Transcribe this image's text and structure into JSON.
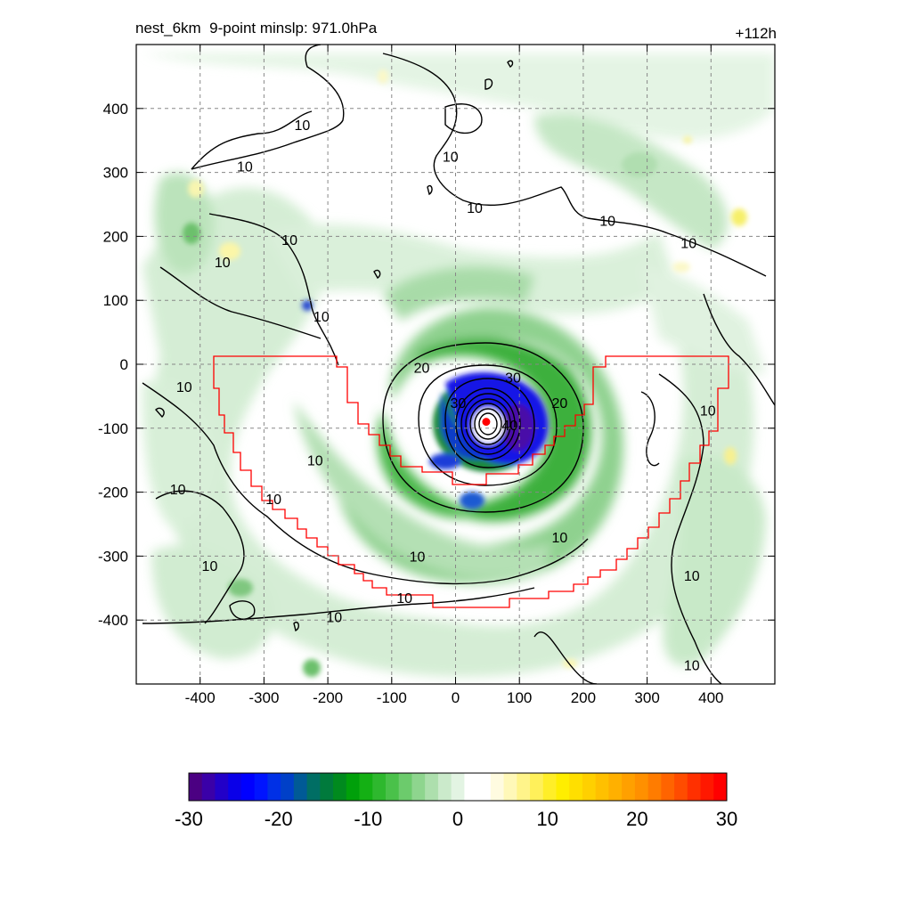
{
  "chart_data": {
    "type": "heatmap",
    "title_left": "nest_6km  9-point minslp: 971.0hPa",
    "title_right": "+112h",
    "xlim": [
      -500,
      500
    ],
    "ylim": [
      -500,
      500
    ],
    "xticks": [
      -400,
      -300,
      -200,
      -100,
      0,
      100,
      200,
      300,
      400
    ],
    "yticks": [
      400,
      300,
      200,
      100,
      0,
      -100,
      -200,
      -300,
      -400
    ],
    "grid": true,
    "center_marker": {
      "x": 48,
      "y": -90,
      "color": "#ff0000"
    },
    "contour_labels": [
      {
        "text": "10",
        "x": -240,
        "y": 375
      },
      {
        "text": "10",
        "x": -330,
        "y": 310
      },
      {
        "text": "10",
        "x": -260,
        "y": 195
      },
      {
        "text": "10",
        "x": -365,
        "y": 160
      },
      {
        "text": "10",
        "x": -210,
        "y": 75
      },
      {
        "text": "10",
        "x": -8,
        "y": 325
      },
      {
        "text": "10",
        "x": 30,
        "y": 245
      },
      {
        "text": "10",
        "x": 238,
        "y": 225
      },
      {
        "text": "10",
        "x": 365,
        "y": 190
      },
      {
        "text": "10",
        "x": -425,
        "y": -35
      },
      {
        "text": "10",
        "x": -220,
        "y": -150
      },
      {
        "text": "10",
        "x": -435,
        "y": -195
      },
      {
        "text": "10",
        "x": -285,
        "y": -210
      },
      {
        "text": "10",
        "x": -385,
        "y": -315
      },
      {
        "text": "10",
        "x": -60,
        "y": -300
      },
      {
        "text": "10",
        "x": -80,
        "y": -365
      },
      {
        "text": "10",
        "x": -190,
        "y": -395
      },
      {
        "text": "10",
        "x": 163,
        "y": -270
      },
      {
        "text": "10",
        "x": 395,
        "y": -72
      },
      {
        "text": "10",
        "x": 370,
        "y": -330
      },
      {
        "text": "10",
        "x": 370,
        "y": -470
      },
      {
        "text": "20",
        "x": -53,
        "y": -5
      },
      {
        "text": "20",
        "x": 163,
        "y": -60
      },
      {
        "text": "30",
        "x": 90,
        "y": -20
      },
      {
        "text": "30",
        "x": 4,
        "y": -60
      },
      {
        "text": "40",
        "x": 85,
        "y": -95
      }
    ],
    "colorbar": {
      "colors": [
        "#4b0082",
        "#3a00a8",
        "#2200c8",
        "#0a00e8",
        "#0000ff",
        "#0014ff",
        "#0030e6",
        "#0040c8",
        "#005a96",
        "#006e64",
        "#007a3c",
        "#008a1e",
        "#00a00a",
        "#14b014",
        "#2eb82e",
        "#4ac14a",
        "#6ccb6c",
        "#8ed58e",
        "#addfad",
        "#cbeacb",
        "#e3f4e3",
        "#ffffff",
        "#ffffff",
        "#fffbe0",
        "#fff8b8",
        "#fff48a",
        "#fff05a",
        "#ffee28",
        "#ffee00",
        "#ffdf00",
        "#ffd000",
        "#ffc000",
        "#ffb000",
        "#ffa000",
        "#ff9000",
        "#ff7c00",
        "#ff6400",
        "#ff4c00",
        "#ff3000",
        "#ff1800",
        "#ff0000"
      ],
      "tick_labels": [
        "-30",
        "-20",
        "-10",
        "0",
        "10",
        "20",
        "30"
      ],
      "range": [
        -30,
        30
      ]
    }
  }
}
